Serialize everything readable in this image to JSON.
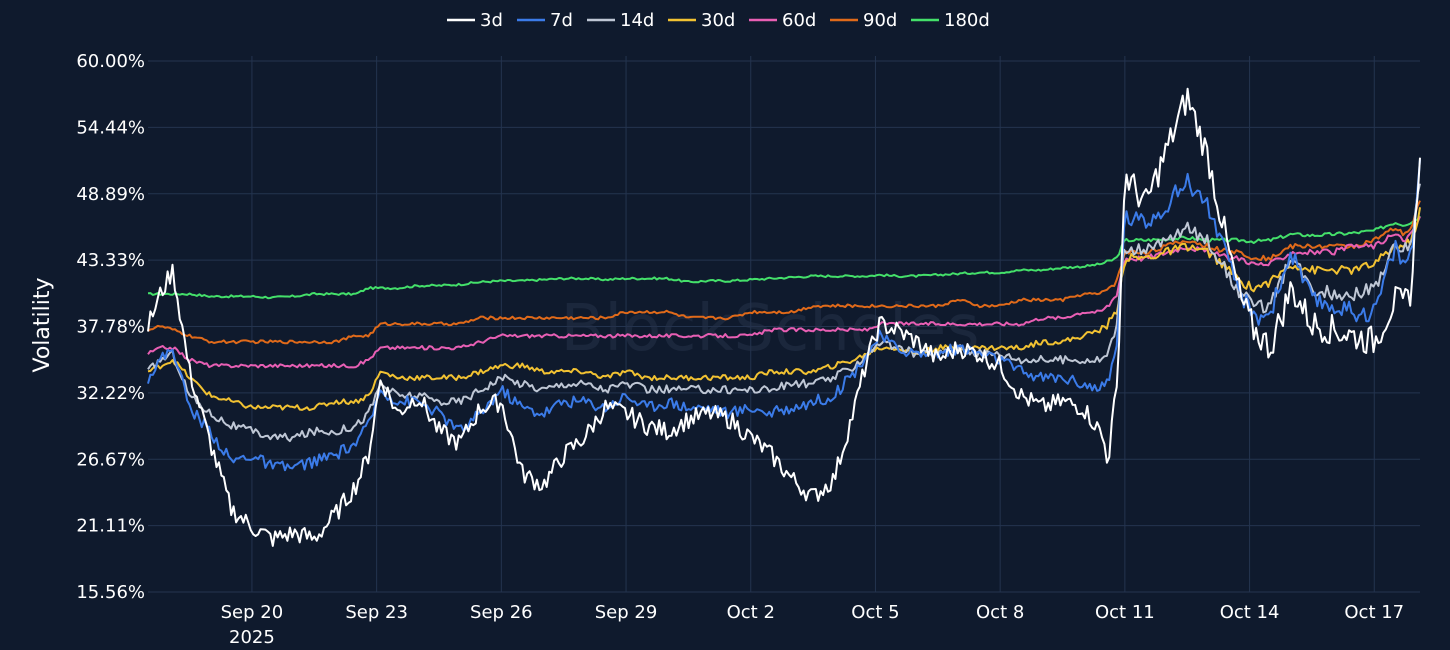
{
  "chart_data": {
    "type": "line",
    "watermark": "BlockScholes",
    "ylabel": "Volatility",
    "ylim": [
      15.56,
      60.0
    ],
    "y_ticks": [
      "15.56%",
      "21.11%",
      "26.67%",
      "32.22%",
      "37.78%",
      "43.33%",
      "48.89%",
      "54.44%",
      "60.00%"
    ],
    "x_range_days": [
      0,
      30.6
    ],
    "x_ticks": [
      {
        "day": 2.5,
        "label": "Sep 20",
        "sublabel": "2025"
      },
      {
        "day": 5.5,
        "label": "Sep 23"
      },
      {
        "day": 8.5,
        "label": "Sep 26"
      },
      {
        "day": 11.5,
        "label": "Sep 29"
      },
      {
        "day": 14.5,
        "label": "Oct 2"
      },
      {
        "day": 17.5,
        "label": "Oct 5"
      },
      {
        "day": 20.5,
        "label": "Oct 8"
      },
      {
        "day": 23.5,
        "label": "Oct 11"
      },
      {
        "day": 26.5,
        "label": "Oct 14"
      },
      {
        "day": 29.5,
        "label": "Oct 17"
      }
    ],
    "series": [
      {
        "name": "3d",
        "color": "#ffffff",
        "x": [
          0,
          0.3,
          0.6,
          1.0,
          1.5,
          2.0,
          2.5,
          3.0,
          3.5,
          4.0,
          4.5,
          5.0,
          5.3,
          5.6,
          6.0,
          6.5,
          7.0,
          7.5,
          8.0,
          8.5,
          9.0,
          9.5,
          10.0,
          10.5,
          11.0,
          11.5,
          12.0,
          12.5,
          13.0,
          13.5,
          14.0,
          14.5,
          15.0,
          15.5,
          16.0,
          16.5,
          17.0,
          17.3,
          17.6,
          18.0,
          18.5,
          19.0,
          19.5,
          20.0,
          20.5,
          21.0,
          21.5,
          22.0,
          22.5,
          22.9,
          23.1,
          23.3,
          23.5,
          24.0,
          24.5,
          25.0,
          25.5,
          26.0,
          26.3,
          26.6,
          27.0,
          27.5,
          28.0,
          28.5,
          29.0,
          29.5,
          30.0,
          30.2,
          30.4,
          30.6
        ],
        "y": [
          37.8,
          40.5,
          42.5,
          34.0,
          28.0,
          22.5,
          21.0,
          20.0,
          20.5,
          20.0,
          22.0,
          24.5,
          27.0,
          33.5,
          30.5,
          32.0,
          29.0,
          28.0,
          31.0,
          31.5,
          25.5,
          24.5,
          27.0,
          28.5,
          31.0,
          30.5,
          29.5,
          29.0,
          30.0,
          30.5,
          30.0,
          28.5,
          27.0,
          25.0,
          23.5,
          25.0,
          31.0,
          35.0,
          38.0,
          37.5,
          36.5,
          35.0,
          36.0,
          35.5,
          34.5,
          32.0,
          31.0,
          31.5,
          31.0,
          29.0,
          27.0,
          32.0,
          50.5,
          48.0,
          52.5,
          57.0,
          52.0,
          44.0,
          40.0,
          37.5,
          36.0,
          41.0,
          38.0,
          37.5,
          37.0,
          36.5,
          40.0,
          39.5,
          41.0,
          53.0
        ]
      },
      {
        "name": "7d",
        "color": "#3b7be8",
        "x": [
          0,
          0.3,
          0.6,
          1.0,
          1.5,
          2.0,
          2.5,
          3.0,
          3.5,
          4.0,
          4.5,
          5.0,
          5.3,
          5.6,
          6.0,
          6.5,
          7.0,
          7.5,
          8.0,
          8.5,
          9.0,
          9.5,
          10.0,
          10.5,
          11.0,
          11.5,
          12.0,
          12.5,
          13.0,
          13.5,
          14.0,
          14.5,
          15.0,
          15.5,
          16.0,
          16.5,
          17.0,
          17.3,
          17.6,
          18.0,
          18.5,
          19.0,
          19.5,
          20.0,
          20.5,
          21.0,
          21.5,
          22.0,
          22.5,
          22.9,
          23.1,
          23.3,
          23.5,
          24.0,
          24.5,
          25.0,
          25.5,
          26.0,
          26.3,
          26.6,
          27.0,
          27.5,
          28.0,
          28.5,
          29.0,
          29.5,
          30.0,
          30.2,
          30.4,
          30.6
        ],
        "y": [
          33.5,
          35.0,
          36.0,
          31.0,
          29.0,
          26.5,
          27.0,
          26.0,
          26.0,
          26.5,
          27.0,
          28.0,
          29.5,
          32.5,
          31.5,
          31.5,
          30.5,
          29.0,
          30.5,
          32.5,
          31.0,
          30.5,
          31.5,
          31.5,
          31.0,
          32.0,
          31.0,
          31.5,
          31.0,
          31.0,
          30.5,
          31.0,
          30.5,
          31.0,
          31.5,
          32.0,
          34.0,
          35.5,
          37.0,
          36.0,
          35.5,
          35.5,
          36.0,
          35.5,
          35.0,
          34.0,
          33.5,
          33.5,
          33.0,
          32.5,
          33.0,
          36.0,
          47.0,
          46.5,
          48.0,
          50.0,
          48.0,
          43.0,
          40.5,
          38.5,
          39.0,
          44.0,
          40.0,
          39.5,
          39.0,
          39.0,
          44.5,
          43.0,
          44.0,
          51.5
        ]
      },
      {
        "name": "14d",
        "color": "#bfc7d5",
        "x": [
          0,
          0.3,
          0.6,
          1.0,
          1.5,
          2.0,
          2.5,
          3.0,
          3.5,
          4.0,
          4.5,
          5.0,
          5.3,
          5.6,
          6.0,
          6.5,
          7.0,
          7.5,
          8.0,
          8.5,
          9.0,
          9.5,
          10.0,
          10.5,
          11.0,
          11.5,
          12.0,
          12.5,
          13.0,
          13.5,
          14.0,
          14.5,
          15.0,
          15.5,
          16.0,
          16.5,
          17.0,
          17.3,
          17.6,
          18.0,
          18.5,
          19.0,
          19.5,
          20.0,
          20.5,
          21.0,
          21.5,
          22.0,
          22.5,
          22.9,
          23.1,
          23.3,
          23.5,
          24.0,
          24.5,
          25.0,
          25.5,
          26.0,
          26.3,
          26.6,
          27.0,
          27.5,
          28.0,
          28.5,
          29.0,
          29.5,
          30.0,
          30.2,
          30.4,
          30.6
        ],
        "y": [
          34.0,
          35.0,
          35.5,
          32.0,
          30.5,
          29.5,
          29.0,
          28.5,
          28.5,
          29.0,
          29.0,
          29.5,
          30.5,
          33.0,
          32.0,
          32.0,
          31.5,
          31.5,
          32.5,
          33.5,
          33.0,
          32.5,
          33.0,
          33.0,
          32.5,
          33.0,
          32.5,
          32.5,
          32.5,
          32.5,
          32.5,
          32.5,
          32.5,
          33.0,
          33.0,
          33.5,
          34.5,
          35.5,
          36.5,
          36.0,
          35.5,
          35.5,
          36.0,
          35.5,
          35.5,
          35.0,
          35.0,
          35.0,
          35.0,
          35.0,
          35.5,
          38.0,
          44.5,
          44.0,
          45.0,
          46.0,
          45.0,
          42.0,
          40.5,
          39.5,
          39.5,
          43.5,
          41.0,
          40.5,
          40.5,
          41.0,
          44.5,
          44.0,
          45.0,
          50.0
        ]
      },
      {
        "name": "30d",
        "color": "#f2c232",
        "x": [
          0,
          0.3,
          0.6,
          1.0,
          1.5,
          2.0,
          2.5,
          3.0,
          3.5,
          4.0,
          4.5,
          5.0,
          5.3,
          5.6,
          6.0,
          6.5,
          7.0,
          7.5,
          8.0,
          8.5,
          9.0,
          9.5,
          10.0,
          10.5,
          11.0,
          11.5,
          12.0,
          12.5,
          13.0,
          13.5,
          14.0,
          14.5,
          15.0,
          15.5,
          16.0,
          16.5,
          17.0,
          17.3,
          17.6,
          18.0,
          18.5,
          19.0,
          19.5,
          20.0,
          20.5,
          21.0,
          21.5,
          22.0,
          22.5,
          22.9,
          23.1,
          23.3,
          23.5,
          24.0,
          24.5,
          25.0,
          25.5,
          26.0,
          26.3,
          26.6,
          27.0,
          27.5,
          28.0,
          28.5,
          29.0,
          29.5,
          30.0,
          30.2,
          30.4,
          30.6
        ],
        "y": [
          34.0,
          34.5,
          35.0,
          33.5,
          32.0,
          31.5,
          31.0,
          31.0,
          31.0,
          31.0,
          31.5,
          31.5,
          32.0,
          34.0,
          33.5,
          33.5,
          33.5,
          33.5,
          34.0,
          34.5,
          34.5,
          34.0,
          34.0,
          34.0,
          33.5,
          34.0,
          33.5,
          33.5,
          33.5,
          33.5,
          33.5,
          33.5,
          34.0,
          34.0,
          34.0,
          34.5,
          35.0,
          35.5,
          36.0,
          36.0,
          35.5,
          36.0,
          36.0,
          36.0,
          36.0,
          36.0,
          36.5,
          36.5,
          37.0,
          37.5,
          38.0,
          39.0,
          43.5,
          43.5,
          44.0,
          44.5,
          44.0,
          42.5,
          41.5,
          41.0,
          41.5,
          43.0,
          42.5,
          42.5,
          42.5,
          43.0,
          44.5,
          44.5,
          45.0,
          47.5
        ]
      },
      {
        "name": "60d",
        "color": "#e85fb4",
        "x": [
          0,
          0.3,
          0.6,
          1.0,
          1.5,
          2.0,
          2.5,
          3.0,
          3.5,
          4.0,
          4.5,
          5.0,
          5.3,
          5.6,
          6.0,
          6.5,
          7.0,
          7.5,
          8.0,
          8.5,
          9.0,
          9.5,
          10.0,
          10.5,
          11.0,
          11.5,
          12.0,
          12.5,
          13.0,
          13.5,
          14.0,
          14.5,
          15.0,
          15.5,
          16.0,
          16.5,
          17.0,
          17.3,
          17.6,
          18.0,
          18.5,
          19.0,
          19.5,
          20.0,
          20.5,
          21.0,
          21.5,
          22.0,
          22.5,
          22.9,
          23.1,
          23.3,
          23.5,
          24.0,
          24.5,
          25.0,
          25.5,
          26.0,
          26.3,
          26.6,
          27.0,
          27.5,
          28.0,
          28.5,
          29.0,
          29.5,
          30.0,
          30.2,
          30.4,
          30.6
        ],
        "y": [
          35.5,
          36.0,
          36.0,
          35.0,
          34.5,
          34.5,
          34.5,
          34.5,
          34.5,
          34.5,
          34.5,
          34.5,
          35.0,
          36.0,
          36.0,
          36.0,
          36.0,
          36.0,
          36.5,
          37.0,
          37.0,
          37.0,
          37.0,
          37.0,
          37.0,
          37.0,
          37.0,
          37.0,
          37.0,
          37.0,
          37.0,
          37.0,
          37.5,
          37.5,
          37.5,
          37.5,
          37.5,
          37.5,
          38.0,
          38.0,
          38.0,
          38.0,
          38.0,
          38.0,
          38.0,
          38.0,
          38.5,
          38.5,
          39.0,
          39.0,
          39.5,
          40.5,
          43.5,
          43.5,
          44.0,
          44.5,
          44.0,
          43.5,
          43.5,
          43.0,
          43.0,
          44.0,
          44.0,
          44.0,
          44.5,
          44.5,
          45.5,
          45.0,
          45.5,
          47.0
        ]
      },
      {
        "name": "90d",
        "color": "#e06a1a",
        "x": [
          0,
          0.3,
          0.6,
          1.0,
          1.5,
          2.0,
          2.5,
          3.0,
          3.5,
          4.0,
          4.5,
          5.0,
          5.3,
          5.6,
          6.0,
          6.5,
          7.0,
          7.5,
          8.0,
          8.5,
          9.0,
          9.5,
          10.0,
          10.5,
          11.0,
          11.5,
          12.0,
          12.5,
          13.0,
          13.5,
          14.0,
          14.5,
          15.0,
          15.5,
          16.0,
          16.5,
          17.0,
          17.3,
          17.6,
          18.0,
          18.5,
          19.0,
          19.5,
          20.0,
          20.5,
          21.0,
          21.5,
          22.0,
          22.5,
          22.9,
          23.1,
          23.3,
          23.5,
          24.0,
          24.5,
          25.0,
          25.5,
          26.0,
          26.3,
          26.6,
          27.0,
          27.5,
          28.0,
          28.5,
          29.0,
          29.5,
          30.0,
          30.2,
          30.4,
          30.6
        ],
        "y": [
          37.5,
          37.8,
          37.5,
          37.0,
          36.5,
          36.5,
          36.5,
          36.5,
          36.5,
          36.5,
          36.5,
          37.0,
          37.0,
          38.0,
          38.0,
          38.0,
          38.0,
          38.0,
          38.5,
          38.5,
          38.5,
          38.5,
          38.5,
          38.5,
          38.5,
          39.0,
          39.0,
          39.0,
          38.5,
          38.5,
          38.5,
          39.0,
          39.0,
          39.0,
          39.5,
          39.5,
          39.5,
          39.5,
          39.5,
          39.5,
          39.5,
          39.5,
          40.0,
          39.5,
          39.5,
          40.0,
          40.0,
          40.0,
          40.5,
          40.5,
          41.0,
          41.5,
          44.0,
          44.0,
          44.5,
          45.0,
          44.5,
          44.0,
          44.0,
          43.5,
          43.5,
          44.5,
          44.5,
          44.5,
          44.5,
          45.0,
          46.0,
          45.5,
          46.0,
          48.5
        ]
      },
      {
        "name": "180d",
        "color": "#44e06a",
        "x": [
          0,
          0.3,
          0.6,
          1.0,
          1.5,
          2.0,
          2.5,
          3.0,
          3.5,
          4.0,
          4.5,
          5.0,
          5.3,
          5.6,
          6.0,
          6.5,
          7.0,
          7.5,
          8.0,
          8.5,
          9.0,
          9.5,
          10.0,
          10.5,
          11.0,
          11.5,
          12.0,
          12.5,
          13.0,
          13.5,
          14.0,
          14.5,
          15.0,
          15.5,
          16.0,
          16.5,
          17.0,
          17.3,
          17.6,
          18.0,
          18.5,
          19.0,
          19.5,
          20.0,
          20.5,
          21.0,
          21.5,
          22.0,
          22.5,
          22.9,
          23.1,
          23.3,
          23.5,
          24.0,
          24.5,
          25.0,
          25.5,
          26.0,
          26.3,
          26.6,
          27.0,
          27.5,
          28.0,
          28.5,
          29.0,
          29.5,
          30.0,
          30.2,
          30.4,
          30.6
        ],
        "y": [
          40.5,
          40.5,
          40.5,
          40.5,
          40.3,
          40.3,
          40.3,
          40.2,
          40.3,
          40.5,
          40.5,
          40.5,
          41.0,
          41.0,
          41.0,
          41.2,
          41.2,
          41.3,
          41.5,
          41.6,
          41.6,
          41.7,
          41.8,
          41.8,
          41.7,
          41.8,
          41.8,
          41.8,
          41.5,
          41.6,
          41.6,
          41.7,
          41.8,
          41.9,
          42.0,
          42.0,
          42.0,
          42.0,
          42.1,
          42.0,
          42.0,
          42.1,
          42.2,
          42.3,
          42.3,
          42.5,
          42.5,
          42.7,
          42.8,
          43.0,
          43.2,
          43.5,
          45.0,
          45.0,
          45.1,
          45.2,
          45.0,
          45.0,
          45.0,
          44.9,
          45.0,
          45.5,
          45.4,
          45.5,
          45.6,
          45.8,
          46.5,
          46.3,
          46.5,
          47.0
        ]
      }
    ]
  }
}
